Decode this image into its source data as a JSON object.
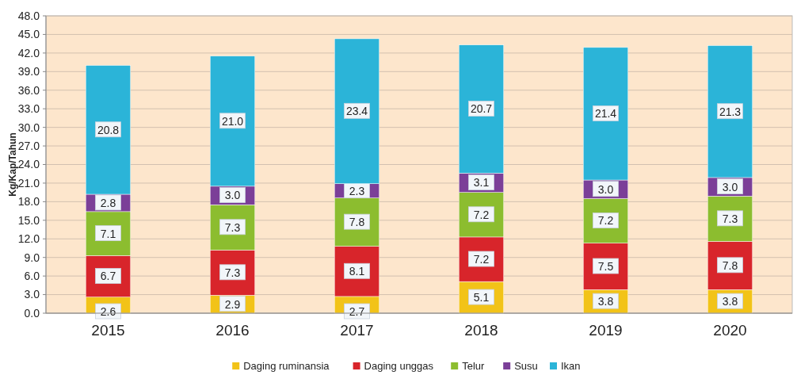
{
  "chart_data": {
    "type": "bar",
    "stacked": true,
    "ylabel": "Kg/Kap/Tahun",
    "categories": [
      "2015",
      "2016",
      "2017",
      "2018",
      "2019",
      "2020"
    ],
    "series": [
      {
        "name": "Daging ruminansia",
        "color": "#f2c318",
        "values": [
          2.6,
          2.9,
          2.7,
          5.1,
          3.8,
          3.8
        ],
        "value_labels": [
          "2.6",
          "2.9",
          "2.7",
          "5.1",
          "3.8",
          "3.8"
        ]
      },
      {
        "name": "Daging unggas",
        "color": "#d8252b",
        "values": [
          6.7,
          7.3,
          8.1,
          7.2,
          7.5,
          7.8
        ],
        "value_labels": [
          "6.7",
          "7.3",
          "8.1",
          "7.2",
          "7.5",
          "7.8"
        ]
      },
      {
        "name": "Telur",
        "color": "#8cbd2f",
        "values": [
          7.1,
          7.3,
          7.8,
          7.2,
          7.2,
          7.3
        ],
        "value_labels": [
          "7.1",
          "7.3",
          "7.8",
          "7.2",
          "7.2",
          "7.3"
        ]
      },
      {
        "name": "Susu",
        "color": "#7b3f98",
        "values": [
          2.8,
          3.0,
          2.3,
          3.1,
          3.0,
          3.0
        ],
        "value_labels": [
          "2.8",
          "3.0",
          "2.3",
          "3.1",
          "3.0",
          "3.0"
        ]
      },
      {
        "name": "Ikan",
        "color": "#2bb4d8",
        "values": [
          20.8,
          21.0,
          23.4,
          20.7,
          21.4,
          21.3
        ],
        "value_labels": [
          "20.8",
          "21.0",
          "23.4",
          "20.7",
          "21.4",
          "21.3"
        ]
      }
    ],
    "ylim": [
      0,
      48
    ],
    "yticks": [
      {
        "value": 0,
        "label": "0.0"
      },
      {
        "value": 3,
        "label": "3.0"
      },
      {
        "value": 6,
        "label": "6.0"
      },
      {
        "value": 9,
        "label": "9.0"
      },
      {
        "value": 12,
        "label": "12.0"
      },
      {
        "value": 15,
        "label": "15.0"
      },
      {
        "value": 18,
        "label": "18.0"
      },
      {
        "value": 21,
        "label": "21.0"
      },
      {
        "value": 24,
        "label": "24.0"
      },
      {
        "value": 27,
        "label": "27.0"
      },
      {
        "value": 30,
        "label": "30.0"
      },
      {
        "value": 33,
        "label": "33.0"
      },
      {
        "value": 36,
        "label": "36.0"
      },
      {
        "value": 39,
        "label": "39.0"
      },
      {
        "value": 42,
        "label": "42.0"
      },
      {
        "value": 45,
        "label": "45.0"
      },
      {
        "value": 48,
        "label": "48.0"
      }
    ],
    "grid": "y",
    "legend": "bottom"
  }
}
